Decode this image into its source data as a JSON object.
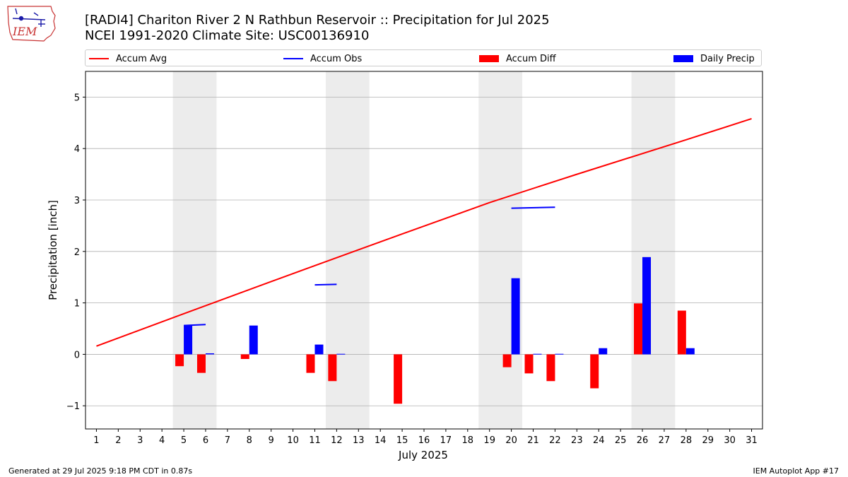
{
  "header": {
    "title_line1": "[RADI4] Chariton River 2 N Rathbun Reservoir :: Precipitation for Jul 2025",
    "title_line2": "NCEI 1991-2020 Climate Site: USC00136910"
  },
  "logo": {
    "text": "IEM",
    "icon": "iowa-weather-station-logo"
  },
  "footer": {
    "left": "Generated at 29 Jul 2025 9:18 PM CDT in 0.87s",
    "right": "IEM Autoplot App #17"
  },
  "legend": {
    "items": [
      {
        "label": "Accum Avg",
        "kind": "line",
        "color": "#ff0000"
      },
      {
        "label": "Accum Obs",
        "kind": "line",
        "color": "#0000ff"
      },
      {
        "label": "Accum Diff",
        "kind": "patch",
        "color": "#ff0000"
      },
      {
        "label": "Daily Precip",
        "kind": "patch",
        "color": "#0000ff"
      }
    ]
  },
  "chart_data": {
    "type": "bar",
    "title": "[RADI4] Chariton River 2 N Rathbun Reservoir :: Precipitation for Jul 2025",
    "subtitle": "NCEI 1991-2020 Climate Site: USC00136910",
    "xlabel": "July 2025",
    "ylabel": "Precipitation [inch]",
    "xlim": [
      0.5,
      31.5
    ],
    "ylim": [
      -1.45,
      5.5
    ],
    "yticks": [
      -1,
      0,
      1,
      2,
      3,
      4,
      5
    ],
    "ytick_labels": [
      "−1",
      "0",
      "1",
      "2",
      "3",
      "4",
      "5"
    ],
    "xticks": [
      1,
      2,
      3,
      4,
      5,
      6,
      7,
      8,
      9,
      10,
      11,
      12,
      13,
      14,
      15,
      16,
      17,
      18,
      19,
      20,
      21,
      22,
      23,
      24,
      25,
      26,
      27,
      28,
      29,
      30,
      31
    ],
    "grid": "y",
    "legend_position": "top",
    "shaded_weekends": [
      [
        4.5,
        6.5
      ],
      [
        11.5,
        13.5
      ],
      [
        18.5,
        20.5
      ],
      [
        25.5,
        27.5
      ]
    ],
    "shade_color": "#ececec",
    "colors": {
      "avg": "#ff0000",
      "obs": "#0000ff",
      "diff": "#ff0000",
      "daily": "#0000ff",
      "grid": "#b0b0b0"
    },
    "accum_avg": {
      "name": "Accum Avg",
      "x": [
        1,
        5,
        10,
        15,
        19,
        23,
        28,
        31
      ],
      "y": [
        0.16,
        0.79,
        1.57,
        2.34,
        2.95,
        3.5,
        4.17,
        4.58
      ]
    },
    "accum_obs_segments": {
      "name": "Accum Obs",
      "segments": [
        {
          "x": [
            5,
            6
          ],
          "y": [
            0.56,
            0.58
          ]
        },
        {
          "x": [
            11,
            12
          ],
          "y": [
            1.35,
            1.36
          ]
        },
        {
          "x": [
            20,
            22
          ],
          "y": [
            2.84,
            2.86
          ]
        }
      ]
    },
    "accum_diff": {
      "name": "Accum Diff",
      "x": [
        5,
        6,
        8,
        11,
        12,
        15,
        20,
        21,
        22,
        24,
        26,
        28
      ],
      "values": [
        -0.23,
        -0.36,
        -0.09,
        -0.36,
        -0.52,
        -0.96,
        -0.25,
        -0.37,
        -0.52,
        -0.66,
        0.99,
        0.85
      ]
    },
    "daily_precip": {
      "name": "Daily Precip",
      "x": [
        5,
        6,
        8,
        11,
        12,
        20,
        21,
        22,
        24,
        26,
        28
      ],
      "values": [
        0.56,
        0.02,
        0.56,
        0.19,
        0.01,
        1.48,
        0.01,
        0.01,
        0.12,
        1.89,
        0.12
      ]
    }
  }
}
